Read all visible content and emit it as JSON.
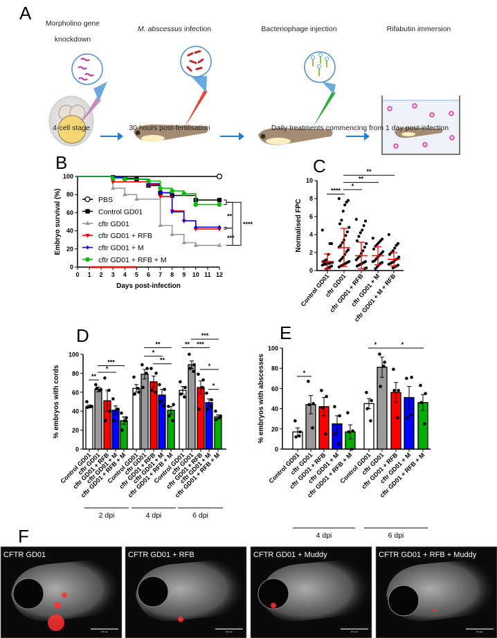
{
  "panel_labels": {
    "a": "A",
    "b": "B",
    "c": "C",
    "d": "D",
    "e": "E",
    "f": "F"
  },
  "panel_a": {
    "steps": [
      {
        "title": "Morpholino gene",
        "title2": "knockdown",
        "caption": "4-cell stage"
      },
      {
        "title_italic": "M. abscessus",
        "title": " infection",
        "caption": "30 hours post-fertilisation"
      },
      {
        "title": "Bacteriophage injection"
      },
      {
        "title": "Rifabutin immersion"
      }
    ],
    "shared_caption": "Daily treatments commencing from 1 day post-infection",
    "colors": {
      "arrow": "#1a7fd0",
      "morpholino": "#c0269a",
      "bacteria": "#c0272d",
      "phage_needle": "#2faa3a",
      "infection_needle": "#e8453c",
      "yolk": "#f7d774",
      "fish": "#a48c74",
      "tank_dots": "#d2449c"
    }
  },
  "chart_data": [
    {
      "id": "B",
      "type": "line",
      "subtype": "kaplan-meier step",
      "xlabel": "Days post-infection",
      "ylabel": "Embryo survival (%)",
      "xlim": [
        0,
        12
      ],
      "ylim": [
        0,
        100
      ],
      "xticks": [
        "0",
        "1",
        "2",
        "3",
        "4",
        "5",
        "6",
        "7",
        "8",
        "9",
        "10",
        "11",
        "12"
      ],
      "yticks": [
        "0",
        "20",
        "40",
        "60",
        "80",
        "100"
      ],
      "legend_position": "left-inside",
      "treatment_window_days": [
        1,
        5
      ],
      "treatment_window_color": "#ff0000",
      "series": [
        {
          "name": "PBS",
          "color": "#000000",
          "marker": "open-circle",
          "points": [
            [
              0,
              100
            ],
            [
              12,
              100
            ]
          ]
        },
        {
          "name": "Control GD01",
          "color": "#000000",
          "marker": "square",
          "points": [
            [
              0,
              100
            ],
            [
              3,
              99
            ],
            [
              4,
              98
            ],
            [
              5,
              97
            ],
            [
              6,
              90
            ],
            [
              7,
              82
            ],
            [
              8,
              79
            ],
            [
              10,
              74
            ],
            [
              12,
              74
            ]
          ]
        },
        {
          "name": "cftr GD01",
          "color": "#999999",
          "marker": "triangle-up",
          "points": [
            [
              0,
              100
            ],
            [
              3,
              87
            ],
            [
              4,
              80
            ],
            [
              5,
              75
            ],
            [
              7,
              46
            ],
            [
              8,
              36
            ],
            [
              9,
              27
            ],
            [
              10,
              24
            ],
            [
              12,
              24
            ]
          ]
        },
        {
          "name": "cftr GD01 + RFB",
          "color": "#ff0000",
          "marker": "triangle-down",
          "points": [
            [
              0,
              100
            ],
            [
              3,
              94
            ],
            [
              6,
              91
            ],
            [
              7,
              78
            ],
            [
              8,
              62
            ],
            [
              9,
              51
            ],
            [
              10,
              42
            ],
            [
              12,
              42
            ]
          ]
        },
        {
          "name": "cftr GD01 + M",
          "color": "#0000ff",
          "marker": "diamond",
          "points": [
            [
              0,
              100
            ],
            [
              3,
              99
            ],
            [
              4,
              97
            ],
            [
              6,
              92
            ],
            [
              7,
              82
            ],
            [
              8,
              61
            ],
            [
              9,
              51
            ],
            [
              10,
              44
            ],
            [
              12,
              44
            ]
          ]
        },
        {
          "name": "cftr GD01 + RFB + M",
          "color": "#00c000",
          "marker": "circle",
          "points": [
            [
              0,
              100
            ],
            [
              3,
              98
            ],
            [
              4,
              97
            ],
            [
              6,
              95
            ],
            [
              7,
              87
            ],
            [
              8,
              84
            ],
            [
              9,
              81
            ],
            [
              10,
              69
            ],
            [
              12,
              69
            ]
          ]
        }
      ],
      "significance": [
        {
          "label": "**",
          "between": [
            "Control GD01 / cftr GD01 + RFB + M",
            "cftr GD01 + RFB / cftr GD01 + M"
          ]
        },
        {
          "label": "***",
          "between": [
            "cftr GD01 + RFB / cftr GD01 + M",
            "cftr GD01"
          ]
        },
        {
          "label": "****",
          "between": [
            "Control GD01 / cftr GD01 + RFB + M",
            "cftr GD01"
          ]
        }
      ]
    },
    {
      "id": "C",
      "type": "scatter",
      "subtype": "dot plot with mean ± SD",
      "ylabel": "Normalised FPC",
      "ylim": [
        0,
        10
      ],
      "yticks": [
        "0",
        "2",
        "4",
        "6",
        "8",
        "10"
      ],
      "categories": [
        "Control GD01",
        "cftr GD01",
        "cftr GD01 + RFB",
        "cftr GD01 + M",
        "cftr GD01 + M + RFB"
      ],
      "mean": [
        1.0,
        2.55,
        1.65,
        1.65,
        1.25
      ],
      "sd_upper": [
        1.85,
        4.7,
        3.15,
        2.65,
        2.0
      ],
      "sd_lower": [
        0.2,
        0.45,
        0.2,
        0.65,
        0.5
      ],
      "point_color": "#000000",
      "summary_color": "#ff0000",
      "points": [
        [
          4.5,
          3.0,
          3.0,
          1.8,
          1.2,
          1.1,
          1.0,
          0.9,
          0.9,
          0.8,
          0.8,
          0.7,
          0.7,
          0.6,
          0.5,
          0.4,
          0.3,
          0.2,
          0.9,
          1.0
        ],
        [
          8.0,
          7.8,
          7.6,
          7.3,
          6.6,
          5.6,
          5.2,
          4.8,
          4.3,
          3.9,
          3.4,
          3.1,
          2.8,
          2.6,
          2.3,
          2.1,
          1.8,
          1.5,
          1.3,
          1.1,
          1.0,
          0.9,
          0.8,
          0.7,
          0.6,
          0.5,
          0.4
        ],
        [
          5.7,
          5.5,
          5.0,
          4.5,
          4.2,
          3.8,
          3.3,
          3.0,
          2.6,
          2.2,
          1.9,
          1.6,
          1.4,
          1.2,
          1.0,
          0.9,
          0.8,
          0.7,
          0.6,
          0.5,
          0.3,
          0.2
        ],
        [
          3.6,
          3.5,
          3.3,
          3.1,
          2.9,
          2.7,
          2.4,
          2.1,
          1.9,
          1.7,
          1.5,
          1.3,
          1.1,
          1.0,
          0.9,
          0.8,
          0.6,
          0.4,
          0.2
        ],
        [
          4.0,
          3.0,
          2.8,
          2.5,
          2.2,
          2.0,
          1.8,
          1.5,
          1.3,
          1.2,
          1.0,
          0.9,
          0.8,
          0.7,
          0.6,
          0.5,
          0.4,
          0.3
        ]
      ],
      "significance": [
        {
          "label": "****",
          "from": 0,
          "to": 1,
          "y": 8.5
        },
        {
          "label": "*",
          "from": 1,
          "to": 2,
          "y": 9.0
        },
        {
          "label": "**",
          "from": 1,
          "to": 3,
          "y": 9.8
        },
        {
          "label": "**",
          "from": 1,
          "to": 4,
          "y": 10.6
        }
      ]
    },
    {
      "id": "D",
      "type": "bar",
      "ylabel": "% embryos with cords",
      "ylim": [
        0,
        100
      ],
      "yticks": [
        "0",
        "20",
        "40",
        "60",
        "80",
        "100"
      ],
      "categories": [
        "Control GD01",
        "cftr GD01",
        "cftr GD01 + RFB",
        "cftr GD01 + M",
        "cftr GD01 + RFB + M"
      ],
      "colors": [
        "#ffffff",
        "#999999",
        "#ff0000",
        "#0000ff",
        "#00b000"
      ],
      "groups": [
        {
          "label": "2 dpi",
          "values": [
            45,
            63,
            51,
            41,
            30
          ],
          "sem": [
            1.5,
            2.5,
            11,
            4.5,
            4
          ],
          "points": [
            [
              50,
              45,
              44,
              45
            ],
            [
              68,
              63,
              64,
              62
            ],
            [
              75,
              40,
              30,
              62
            ],
            [
              53,
              42,
              30,
              42
            ],
            [
              38,
              33,
              20,
              30
            ]
          ],
          "significance": [
            {
              "label": "**",
              "from": 0,
              "to": 1,
              "y": 73
            },
            {
              "label": "*",
              "from": 1,
              "to": 3,
              "y": 81
            },
            {
              "label": "***",
              "from": 1,
              "to": 4,
              "y": 88
            }
          ]
        },
        {
          "label": "4 dpi",
          "values": [
            64,
            79,
            71,
            57,
            41
          ],
          "sem": [
            4,
            5,
            6,
            6,
            4
          ],
          "points": [
            [
              76,
              60,
              58,
              64
            ],
            [
              89,
              85,
              65,
              80
            ],
            [
              85,
              80,
              62,
              60
            ],
            [
              68,
              63,
              50,
              46
            ],
            [
              45,
              47,
              35,
              30
            ]
          ],
          "significance": [
            {
              "label": "*",
              "from": 1,
              "to": 3,
              "y": 98
            },
            {
              "label": "**",
              "from": 2,
              "to": 4,
              "y": 90
            },
            {
              "label": "**",
              "from": 1,
              "to": 4,
              "y": 107
            }
          ]
        },
        {
          "label": "6 dpi",
          "values": [
            62,
            89,
            65,
            49,
            34
          ],
          "sem": [
            4,
            4,
            7,
            4,
            2
          ],
          "points": [
            [
              71,
              65,
              58,
              55
            ],
            [
              100,
              89,
              85,
              82
            ],
            [
              79,
              73,
              42,
              65
            ],
            [
              59,
              52,
              42,
              45
            ],
            [
              40,
              35,
              31,
              33
            ]
          ],
          "significance": [
            {
              "label": "**",
              "from": 0,
              "to": 1,
              "y": 107
            },
            {
              "label": "***",
              "from": 1,
              "to": 3,
              "y": 107
            },
            {
              "label": "***",
              "from": 1,
              "to": 4,
              "y": 116
            },
            {
              "label": "*",
              "from": 2,
              "to": 4,
              "y": 84
            },
            {
              "label": "*",
              "from": 3,
              "to": 4,
              "y": 63
            }
          ]
        }
      ]
    },
    {
      "id": "E",
      "type": "bar",
      "ylabel": "% embryos with abscesses",
      "ylim": [
        0,
        100
      ],
      "yticks": [
        "0",
        "20",
        "40",
        "60",
        "80",
        "100"
      ],
      "categories": [
        "Control GD01",
        "cftr GD01",
        "cftr GD01 + RFB",
        "cftr GD01 + M",
        "cftr GD01 + RFB + M"
      ],
      "colors": [
        "#ffffff",
        "#999999",
        "#ff0000",
        "#0000ff",
        "#00b000"
      ],
      "groups": [
        {
          "label": "4 dpi",
          "values": [
            17,
            44,
            42,
            25,
            17
          ],
          "sem": [
            4,
            9,
            9,
            8,
            7
          ],
          "points": [
            [
              28,
              17,
              12,
              13
            ],
            [
              67,
              45,
              44,
              21
            ],
            [
              58,
              52,
              41,
              15
            ],
            [
              42,
              33,
              15,
              5
            ],
            [
              36,
              18,
              17,
              0
            ]
          ],
          "significance": [
            {
              "label": "*",
              "from": 0,
              "to": 1,
              "y": 72
            }
          ]
        },
        {
          "label": "6 dpi",
          "values": [
            45,
            81,
            56,
            51,
            46
          ],
          "sem": [
            5,
            10,
            10,
            11,
            8
          ],
          "points": [
            [
              56,
              48,
              40,
              28
            ],
            [
              94,
              86,
              62,
              82
            ],
            [
              79,
              58,
              58,
              31
            ],
            [
              70,
              71,
              31,
              34
            ],
            [
              63,
              55,
              46,
              25
            ]
          ],
          "significance": [
            {
              "label": "*",
              "from": 0,
              "to": 1,
              "y": 100
            },
            {
              "label": "*",
              "from": 1,
              "to": 4,
              "y": 100
            }
          ]
        }
      ]
    }
  ],
  "panel_f": {
    "images": [
      {
        "label": "CFTR GD01",
        "scale_bar": "0.5 mm"
      },
      {
        "label": "CFTR GD01 + RFB",
        "scale_bar": "0.5 mm"
      },
      {
        "label": "CFTR GD01 + Muddy",
        "scale_bar": "0.5 mm"
      },
      {
        "label": "CFTR GD01 + RFB + Muddy",
        "scale_bar": "0.5 mm"
      }
    ]
  }
}
